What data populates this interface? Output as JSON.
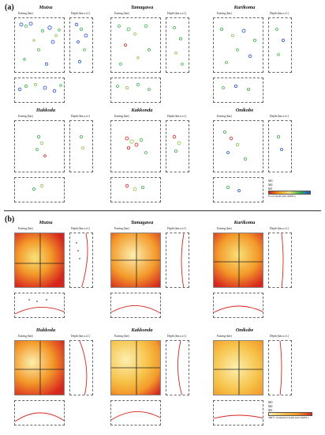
{
  "figure": {
    "panel_a": "(a)",
    "panel_b": "(b)"
  },
  "sites": [
    "Mutsu",
    "Tamagawa",
    "Kurikoma",
    "Hakkoda",
    "Kakkonda",
    "Onikobe"
  ],
  "axes": {
    "easting": "Easting (km)",
    "depth_top": "Depth (km a.s.l.)",
    "northing": "Northing (km)",
    "depth_side": "Depth (km a.s.l.)",
    "depth_side_short": "Depth (km)"
  },
  "legend_a": {
    "mags": [
      "M3",
      "M2",
      "M1"
    ],
    "colorbar_ticks": [
      "-5",
      "0",
      "5",
      "10",
      "15"
    ],
    "colorbar_label": "Focal depth (km AMSL)"
  },
  "legend_b": {
    "mags": [
      "M3",
      "M2",
      "M1"
    ],
    "colorbar_ticks": [
      "0",
      "4",
      "8",
      "12"
    ],
    "colorbar_label": "380°C isothermal depth (km AMSL)"
  },
  "colors": {
    "quake_deep": "#1d4fd6",
    "quake_mid": "#39b54a",
    "quake_shallow": "#d62020",
    "heat_low": "#f7e27a",
    "heat_high": "#d7261e"
  }
}
